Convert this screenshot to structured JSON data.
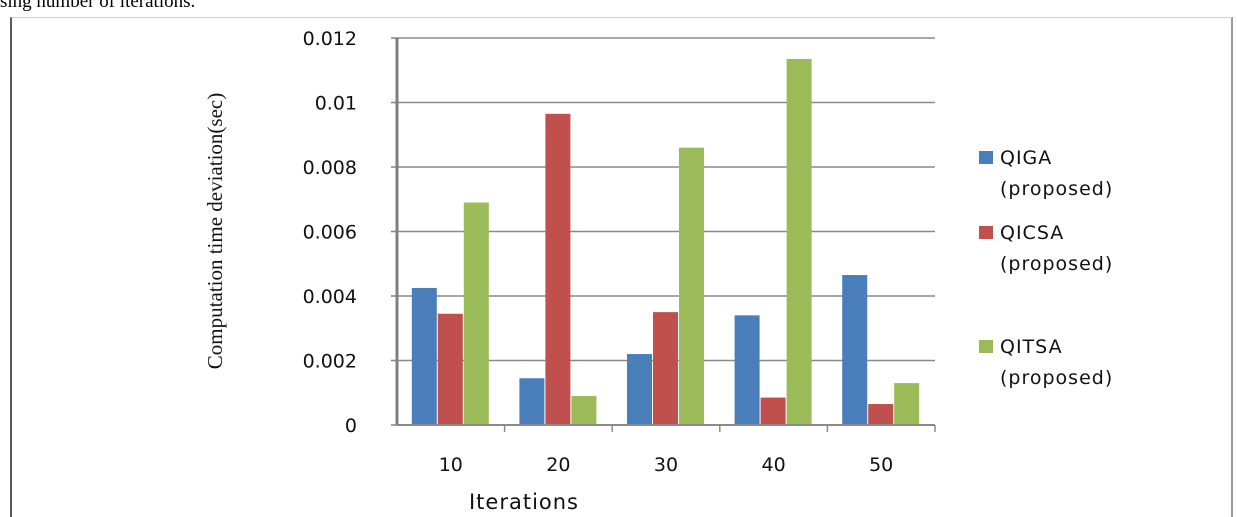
{
  "page": {
    "caption_fragment": "sing number of iterations."
  },
  "chart_data": {
    "type": "bar",
    "categories": [
      "10",
      "20",
      "30",
      "40",
      "50"
    ],
    "series": [
      {
        "name": "QIGA (proposed)",
        "name_lines": [
          "QIGA",
          "(proposed)"
        ],
        "color": "#4a7ebb",
        "values": [
          0.00425,
          0.00145,
          0.0022,
          0.0034,
          0.00465
        ]
      },
      {
        "name": "QICSA (proposed)",
        "name_lines": [
          "QICSA",
          "(proposed)"
        ],
        "color": "#c0504d",
        "values": [
          0.00345,
          0.00965,
          0.0035,
          0.00085,
          0.00065
        ]
      },
      {
        "name": "QITSA (proposed)",
        "name_lines": [
          "QITSA",
          "(proposed)"
        ],
        "color": "#9bbb59",
        "values": [
          0.0069,
          0.0009,
          0.0086,
          0.01135,
          0.0013
        ]
      }
    ],
    "yticks": [
      "0",
      "0.002",
      "0.004",
      "0.006",
      "0.008",
      "0.01",
      "0.012"
    ],
    "ylim": [
      0,
      0.012
    ],
    "xlabel": "Iterations",
    "ylabel": "Computation time deviation(sec)",
    "grid": true,
    "legend": "right"
  }
}
